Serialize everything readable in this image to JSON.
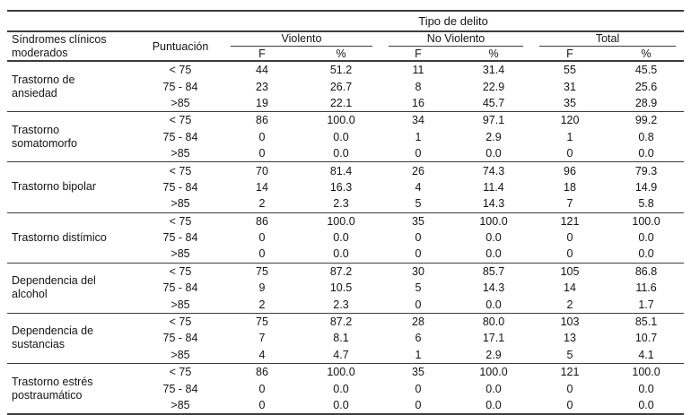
{
  "table": {
    "top_header": "Tipo de delito",
    "col1_header": "Síndromes clínicos\nmoderados",
    "col2_header": "Puntuación",
    "group_headers": [
      "Violento",
      "No Violento",
      "Total"
    ],
    "sub_headers": [
      "F",
      "%",
      "F",
      "%",
      "F",
      "%"
    ],
    "rule_color": "#3c3c3c",
    "sections": [
      {
        "syndrome": "Trastorno de\nansiedad",
        "rows": [
          {
            "puntuacion": "< 75",
            "values": [
              "44",
              "51.2",
              "11",
              "31.4",
              "55",
              "45.5"
            ]
          },
          {
            "puntuacion": "75 - 84",
            "values": [
              "23",
              "26.7",
              "8",
              "22.9",
              "31",
              "25.6"
            ]
          },
          {
            "puntuacion": ">85",
            "values": [
              "19",
              "22.1",
              "16",
              "45.7",
              "35",
              "28.9"
            ]
          }
        ]
      },
      {
        "syndrome": "Trastorno\nsomatomorfo",
        "rows": [
          {
            "puntuacion": "< 75",
            "values": [
              "86",
              "100.0",
              "34",
              "97.1",
              "120",
              "99.2"
            ]
          },
          {
            "puntuacion": "75 - 84",
            "values": [
              "0",
              "0.0",
              "1",
              "2.9",
              "1",
              "0.8"
            ]
          },
          {
            "puntuacion": ">85",
            "values": [
              "0",
              "0.0",
              "0",
              "0.0",
              "0",
              "0.0"
            ]
          }
        ]
      },
      {
        "syndrome": "Trastorno bipolar",
        "rows": [
          {
            "puntuacion": "< 75",
            "values": [
              "70",
              "81.4",
              "26",
              "74.3",
              "96",
              "79.3"
            ]
          },
          {
            "puntuacion": "75 - 84",
            "values": [
              "14",
              "16.3",
              "4",
              "11.4",
              "18",
              "14.9"
            ]
          },
          {
            "puntuacion": ">85",
            "values": [
              "2",
              "2.3",
              "5",
              "14.3",
              "7",
              "5.8"
            ]
          }
        ]
      },
      {
        "syndrome": "Trastorno distímico",
        "rows": [
          {
            "puntuacion": "< 75",
            "values": [
              "86",
              "100.0",
              "35",
              "100.0",
              "121",
              "100.0"
            ]
          },
          {
            "puntuacion": "75 - 84",
            "values": [
              "0",
              "0.0",
              "0",
              "0.0",
              "0",
              "0.0"
            ]
          },
          {
            "puntuacion": ">85",
            "values": [
              "0",
              "0.0",
              "0",
              "0.0",
              "0",
              "0.0"
            ]
          }
        ]
      },
      {
        "syndrome": "Dependencia del\nalcohol",
        "rows": [
          {
            "puntuacion": "< 75",
            "values": [
              "75",
              "87.2",
              "30",
              "85.7",
              "105",
              "86.8"
            ]
          },
          {
            "puntuacion": "75 - 84",
            "values": [
              "9",
              "10.5",
              "5",
              "14.3",
              "14",
              "11.6"
            ]
          },
          {
            "puntuacion": ">85",
            "values": [
              "2",
              "2.3",
              "0",
              "0.0",
              "2",
              "1.7"
            ]
          }
        ]
      },
      {
        "syndrome": "Dependencia de\nsustancias",
        "rows": [
          {
            "puntuacion": "< 75",
            "values": [
              "75",
              "87.2",
              "28",
              "80.0",
              "103",
              "85.1"
            ]
          },
          {
            "puntuacion": "75 - 84",
            "values": [
              "7",
              "8.1",
              "6",
              "17.1",
              "13",
              "10.7"
            ]
          },
          {
            "puntuacion": ">85",
            "values": [
              "4",
              "4.7",
              "1",
              "2.9",
              "5",
              "4.1"
            ]
          }
        ]
      },
      {
        "syndrome": "Trastorno estrés\npostraumático",
        "rows": [
          {
            "puntuacion": "< 75",
            "values": [
              "86",
              "100.0",
              "35",
              "100.0",
              "121",
              "100.0"
            ]
          },
          {
            "puntuacion": "75 - 84",
            "values": [
              "0",
              "0.0",
              "0",
              "0.0",
              "0",
              "0.0"
            ]
          },
          {
            "puntuacion": ">85",
            "values": [
              "0",
              "0.0",
              "0",
              "0.0",
              "0",
              "0.0"
            ]
          }
        ]
      }
    ]
  }
}
